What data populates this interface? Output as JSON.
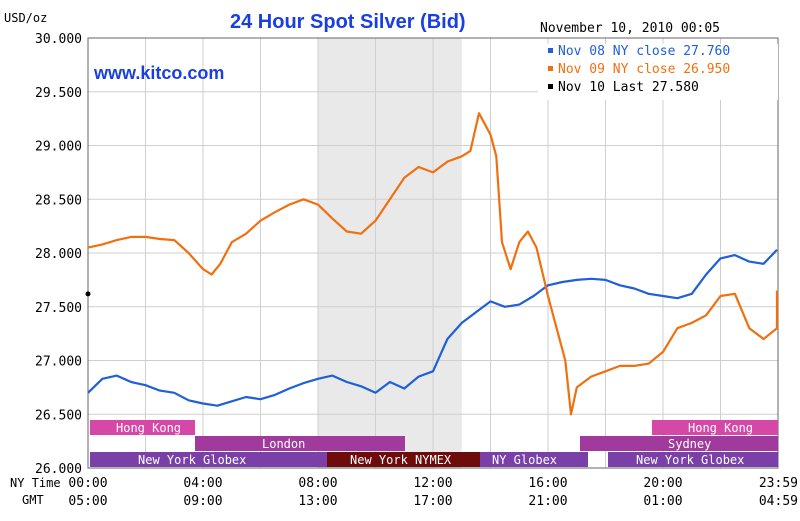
{
  "header": {
    "unit_label": "USD/oz",
    "title": "24 Hour Spot Silver (Bid)",
    "timestamp": "November 10, 2010 00:05",
    "watermark": "www.kitco.com"
  },
  "legend": [
    {
      "label": "Nov 08 NY close 27.760",
      "color": "#1f5fd8"
    },
    {
      "label": "Nov 09 NY close 26.950",
      "color": "#f07010"
    },
    {
      "label": "Nov 10 Last 27.580",
      "color": "#000000"
    }
  ],
  "time_axis": {
    "ny_label": "NY Time",
    "gmt_label": "GMT",
    "ny_ticks": [
      "00:00",
      "04:00",
      "08:00",
      "12:00",
      "16:00",
      "20:00",
      "23:59"
    ],
    "gmt_ticks": [
      "05:00",
      "09:00",
      "13:00",
      "17:00",
      "21:00",
      "01:00",
      "04:59"
    ]
  },
  "markets": {
    "hong_kong_1": "Hong Kong",
    "london": "London",
    "ny_globex_1": "New York Globex",
    "ny_nymex": "New York NYMEX",
    "ny_globex_2": "NY Globex",
    "hong_kong_2": "Hong Kong",
    "sydney": "Sydney",
    "ny_globex_3": "New York Globex"
  },
  "colors": {
    "blue": "#1f5fd8",
    "orange": "#f07010",
    "title": "#1a3fe0",
    "hk_bar": "#d648a8",
    "london_bar": "#a03a9c",
    "globex_bar": "#7a40a8",
    "nymex_bar": "#6e0c0c"
  },
  "chart_data": {
    "type": "line",
    "title": "24 Hour Spot Silver (Bid)",
    "ylabel": "USD/oz",
    "xlabel": "NY Time",
    "ylim": [
      26.0,
      30.0
    ],
    "xlim": [
      0,
      24
    ],
    "y_ticks": [
      "26.000",
      "26.500",
      "27.000",
      "27.500",
      "28.000",
      "28.500",
      "29.000",
      "29.500",
      "30.000"
    ],
    "grid": true,
    "legend_position": "top-right",
    "shaded_session": [
      8.0,
      13.0
    ],
    "series": [
      {
        "name": "Nov 08 NY close 27.760",
        "color": "#1f5fd8",
        "points": [
          [
            0,
            26.7
          ],
          [
            0.5,
            26.83
          ],
          [
            1,
            26.86
          ],
          [
            1.5,
            26.8
          ],
          [
            2,
            26.77
          ],
          [
            2.5,
            26.72
          ],
          [
            3,
            26.7
          ],
          [
            3.5,
            26.63
          ],
          [
            4,
            26.6
          ],
          [
            4.5,
            26.58
          ],
          [
            5,
            26.62
          ],
          [
            5.5,
            26.66
          ],
          [
            6,
            26.64
          ],
          [
            6.5,
            26.68
          ],
          [
            7,
            26.74
          ],
          [
            7.5,
            26.79
          ],
          [
            8,
            26.83
          ],
          [
            8.5,
            26.86
          ],
          [
            9,
            26.8
          ],
          [
            9.5,
            26.76
          ],
          [
            10,
            26.7
          ],
          [
            10.5,
            26.8
          ],
          [
            11,
            26.74
          ],
          [
            11.5,
            26.85
          ],
          [
            12,
            26.9
          ],
          [
            12.5,
            27.2
          ],
          [
            13,
            27.35
          ],
          [
            13.5,
            27.45
          ],
          [
            14,
            27.55
          ],
          [
            14.5,
            27.5
          ],
          [
            15,
            27.52
          ],
          [
            15.5,
            27.6
          ],
          [
            16,
            27.7
          ],
          [
            16.5,
            27.73
          ],
          [
            17,
            27.75
          ],
          [
            17.5,
            27.76
          ],
          [
            18,
            27.75
          ],
          [
            18.5,
            27.7
          ],
          [
            19,
            27.67
          ],
          [
            19.5,
            27.62
          ],
          [
            20,
            27.6
          ],
          [
            20.5,
            27.58
          ],
          [
            21,
            27.62
          ],
          [
            21.5,
            27.8
          ],
          [
            22,
            27.95
          ],
          [
            22.5,
            27.98
          ],
          [
            23,
            27.92
          ],
          [
            23.5,
            27.9
          ],
          [
            24,
            28.03
          ]
        ]
      },
      {
        "name": "Nov 09 NY close 26.950",
        "color": "#f07010",
        "points": [
          [
            0,
            28.05
          ],
          [
            0.5,
            28.08
          ],
          [
            1,
            28.12
          ],
          [
            1.5,
            28.15
          ],
          [
            2,
            28.15
          ],
          [
            2.5,
            28.13
          ],
          [
            3,
            28.12
          ],
          [
            3.5,
            28.0
          ],
          [
            4,
            27.85
          ],
          [
            4.3,
            27.8
          ],
          [
            4.6,
            27.9
          ],
          [
            5,
            28.1
          ],
          [
            5.5,
            28.18
          ],
          [
            6,
            28.3
          ],
          [
            6.5,
            28.38
          ],
          [
            7,
            28.45
          ],
          [
            7.5,
            28.5
          ],
          [
            8,
            28.45
          ],
          [
            8.5,
            28.32
          ],
          [
            9,
            28.2
          ],
          [
            9.5,
            28.18
          ],
          [
            10,
            28.3
          ],
          [
            10.5,
            28.5
          ],
          [
            11,
            28.7
          ],
          [
            11.5,
            28.8
          ],
          [
            12,
            28.75
          ],
          [
            12.5,
            28.85
          ],
          [
            13,
            28.9
          ],
          [
            13.3,
            28.95
          ],
          [
            13.6,
            29.3
          ],
          [
            14,
            29.1
          ],
          [
            14.2,
            28.9
          ],
          [
            14.4,
            28.1
          ],
          [
            14.7,
            27.85
          ],
          [
            15,
            28.1
          ],
          [
            15.3,
            28.2
          ],
          [
            15.6,
            28.05
          ],
          [
            16,
            27.6
          ],
          [
            16.3,
            27.3
          ],
          [
            16.6,
            27.0
          ],
          [
            16.8,
            26.5
          ],
          [
            17,
            26.75
          ],
          [
            17.5,
            26.85
          ],
          [
            18,
            26.9
          ],
          [
            18.5,
            26.95
          ],
          [
            19,
            26.95
          ],
          [
            19.5,
            26.97
          ],
          [
            20,
            27.08
          ],
          [
            20.5,
            27.3
          ],
          [
            21,
            27.35
          ],
          [
            21.5,
            27.42
          ],
          [
            22,
            27.6
          ],
          [
            22.5,
            27.62
          ],
          [
            23,
            27.3
          ],
          [
            23.5,
            27.2
          ],
          [
            24,
            27.3
          ],
          [
            24.5,
            27.6
          ],
          [
            24.85,
            27.65
          ]
        ]
      },
      {
        "name": "Nov 10 Last 27.580",
        "color": "#000000",
        "points": [
          [
            0,
            27.62
          ]
        ]
      }
    ]
  }
}
